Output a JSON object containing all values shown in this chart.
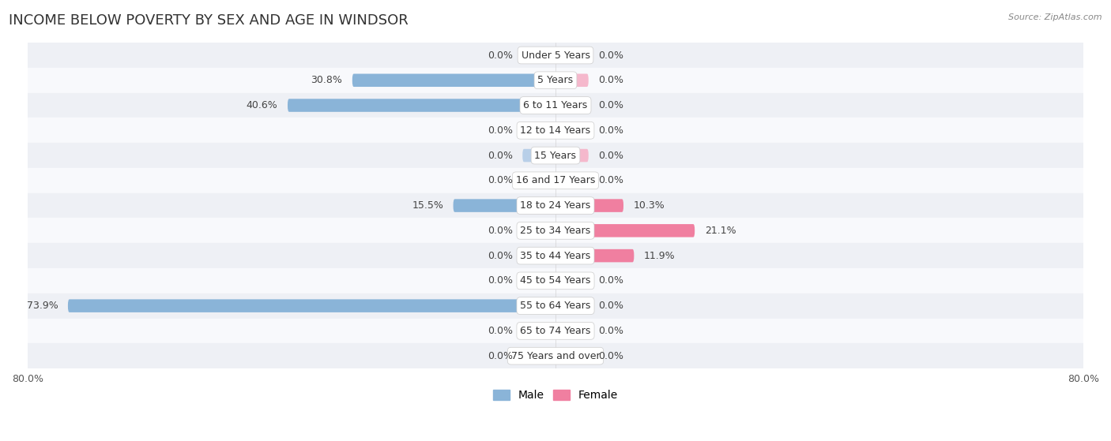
{
  "title": "INCOME BELOW POVERTY BY SEX AND AGE IN WINDSOR",
  "source": "Source: ZipAtlas.com",
  "categories": [
    "Under 5 Years",
    "5 Years",
    "6 to 11 Years",
    "12 to 14 Years",
    "15 Years",
    "16 and 17 Years",
    "18 to 24 Years",
    "25 to 34 Years",
    "35 to 44 Years",
    "45 to 54 Years",
    "55 to 64 Years",
    "65 to 74 Years",
    "75 Years and over"
  ],
  "male_values": [
    0.0,
    30.8,
    40.6,
    0.0,
    0.0,
    0.0,
    15.5,
    0.0,
    0.0,
    0.0,
    73.9,
    0.0,
    0.0
  ],
  "female_values": [
    0.0,
    0.0,
    0.0,
    0.0,
    0.0,
    0.0,
    10.3,
    21.1,
    11.9,
    0.0,
    0.0,
    0.0,
    0.0
  ],
  "male_color": "#8ab4d8",
  "female_color": "#f07fa0",
  "male_stub_color": "#b8cfe8",
  "female_stub_color": "#f5b8cc",
  "row_bg_light": "#eef0f5",
  "row_bg_white": "#f8f9fc",
  "axis_max": 80.0,
  "stub_size": 5.0,
  "title_fontsize": 13,
  "label_fontsize": 9,
  "value_fontsize": 9,
  "tick_fontsize": 9,
  "legend_fontsize": 10,
  "bar_height": 0.52
}
